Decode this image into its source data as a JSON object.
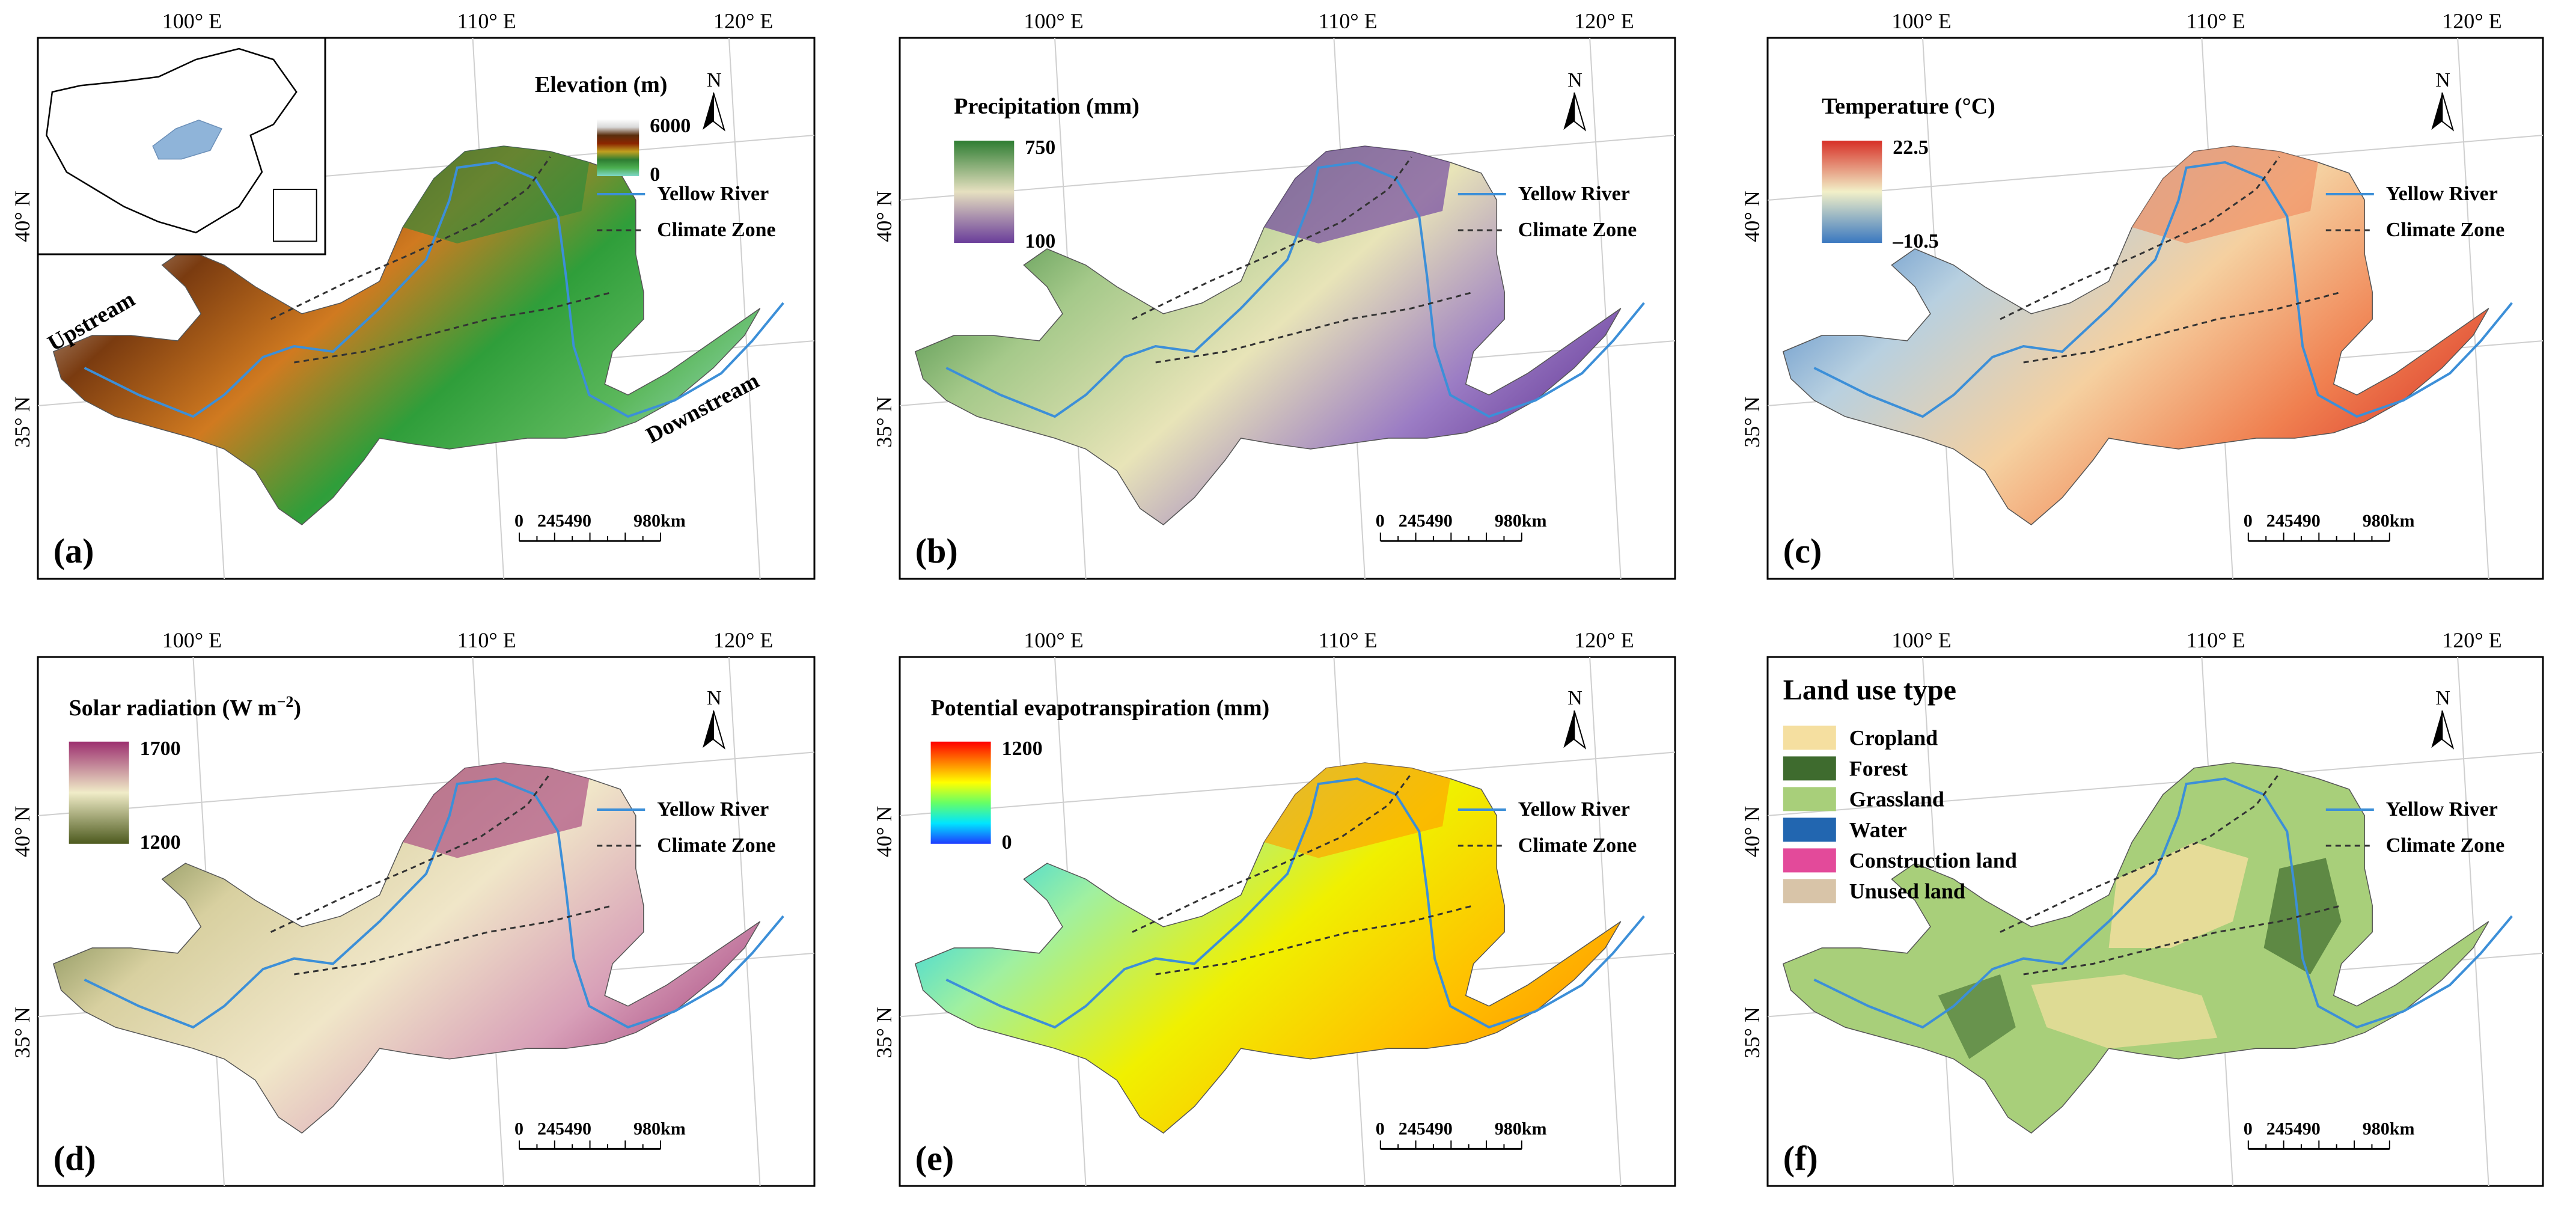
{
  "figure": {
    "panels": [
      {
        "label": "(a)",
        "legend_title": "Elevation (m)",
        "legend_max": "6000",
        "legend_min": "0",
        "legend_colors": [
          "#7fd8c8",
          "#4caf50",
          "#2e7d32",
          "#c0a020",
          "#8b2500",
          "#5a2d0c",
          "#d9d9d9",
          "#ffffff"
        ],
        "region_left": "Upstream",
        "region_right": "Downstream",
        "body_gradient": [
          "#d9d9d9",
          "#7a3b10",
          "#d07a20",
          "#2f9e3a",
          "#5cb85c",
          "#9fdcc8"
        ],
        "top_color": "#2e8b3a"
      },
      {
        "label": "(b)",
        "legend_title": "Precipitation (mm)",
        "legend_max": "750",
        "legend_min": "100",
        "legend_colors": [
          "#6a3d9a",
          "#e6e0c0",
          "#2e7d32"
        ],
        "body_gradient": [
          "#2e7d32",
          "#a5c98a",
          "#e8e4b8",
          "#9b7cc4",
          "#5b2c8f"
        ],
        "top_color": "#6b3fa0"
      },
      {
        "label": "(c)",
        "legend_title": "Temperature (°C)",
        "legend_max": "22.5",
        "legend_min": "–10.5",
        "legend_colors": [
          "#3a78c0",
          "#f2f0c8",
          "#d73027"
        ],
        "body_gradient": [
          "#3a78c0",
          "#b8d0e0",
          "#f5d0a0",
          "#f08050",
          "#d73027"
        ],
        "top_color": "#f08a60"
      },
      {
        "label": "(d)",
        "legend_title": "Solar radiation (W m",
        "legend_title_sup": "−2",
        "legend_title_end": ")",
        "legend_max": "1700",
        "legend_min": "1200",
        "legend_colors": [
          "#4d5a1e",
          "#f0ecc8",
          "#9c2f6f"
        ],
        "body_gradient": [
          "#556b2f",
          "#d8d0a0",
          "#f0e6c8",
          "#d8a0b8",
          "#a03a78"
        ],
        "top_color": "#a8457e"
      },
      {
        "label": "(e)",
        "legend_title": "Potential evapotranspiration (mm)",
        "legend_max": "1200",
        "legend_min": "0",
        "legend_colors": [
          "#1e3cff",
          "#00e5ff",
          "#66ff66",
          "#ffff00",
          "#ff8000",
          "#ff0000"
        ],
        "body_gradient": [
          "#00c8ff",
          "#a0f0a0",
          "#f0f000",
          "#ffc000",
          "#ff9000"
        ],
        "top_color": "#ffa000"
      }
    ],
    "panel_f": {
      "label": "(f)",
      "legend_title": "Land use type",
      "classes": [
        {
          "name": "Cropland",
          "color": "#f5dfa0"
        },
        {
          "name": "Forest",
          "color": "#3e6b2e"
        },
        {
          "name": "Grassland",
          "color": "#a8cf7a"
        },
        {
          "name": "Water",
          "color": "#2266b0"
        },
        {
          "name": "Construction land",
          "color": "#e34a9a"
        },
        {
          "name": "Unused land",
          "color": "#d8c4a8"
        }
      ]
    },
    "common": {
      "lon_labels": [
        "100° E",
        "110° E",
        "120° E"
      ],
      "lat_labels": [
        "40° N",
        "35° N"
      ],
      "north": "N",
      "river_legend": "Yellow River",
      "zone_legend": "Climate Zone",
      "scale_ticks": [
        "0",
        "245490",
        "980km"
      ],
      "river_color": "#3c8fd8"
    }
  }
}
